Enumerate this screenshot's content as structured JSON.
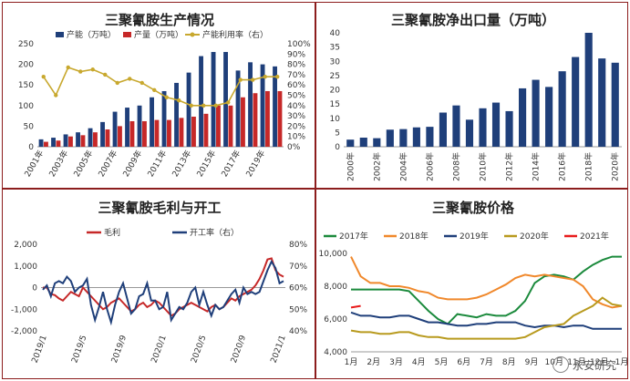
{
  "colors": {
    "blue": "#1f3f7a",
    "red": "#c62828",
    "gold": "#c8a82e",
    "green": "#1b8a3c",
    "orange": "#f0882b",
    "navy": "#1f3f7a",
    "darkgold": "#b89a1e",
    "brightred": "#e81b1b"
  },
  "watermark": "永安研究",
  "chart_data": [
    {
      "type": "bar",
      "title": "三聚氰胺生产情况",
      "categories": [
        "2001年",
        "2002年",
        "2003年",
        "2004年",
        "2005年",
        "2006年",
        "2007年",
        "2008年",
        "2009年",
        "2010年",
        "2011年",
        "2012年",
        "2013年",
        "2014年",
        "2015年",
        "2016年",
        "2017年",
        "2018年",
        "2019年",
        "2020年"
      ],
      "xticks": [
        "2001年",
        "2003年",
        "2005年",
        "2007年",
        "2009年",
        "2011年",
        "2013年",
        "2015年",
        "2017年",
        "2019年"
      ],
      "series": [
        {
          "name": "产能（万吨）",
          "axis": "left",
          "values": [
            18,
            22,
            30,
            35,
            45,
            60,
            85,
            95,
            100,
            120,
            135,
            155,
            180,
            220,
            230,
            230,
            185,
            205,
            200,
            195
          ]
        },
        {
          "name": "产量（万吨）",
          "axis": "left",
          "values": [
            12,
            15,
            25,
            28,
            35,
            42,
            50,
            62,
            62,
            65,
            65,
            70,
            73,
            80,
            100,
            100,
            120,
            130,
            135,
            135
          ]
        },
        {
          "name": "产能利用率（右）",
          "type": "line",
          "axis": "right",
          "values": [
            68,
            50,
            77,
            73,
            75,
            70,
            62,
            66,
            62,
            55,
            48,
            45,
            40,
            40,
            40,
            43,
            65,
            65,
            68,
            68
          ]
        }
      ],
      "ylim": [
        0,
        250
      ],
      "yticks": [
        0,
        50,
        100,
        150,
        200,
        250
      ],
      "y2lim": [
        0,
        100
      ],
      "y2ticks": [
        "0%",
        "10%",
        "20%",
        "30%",
        "40%",
        "50%",
        "60%",
        "70%",
        "80%",
        "90%",
        "100%"
      ]
    },
    {
      "type": "bar",
      "title": "三聚氰胺净出口量（万吨）",
      "categories": [
        "2000年",
        "2001年",
        "2002年",
        "2003年",
        "2004年",
        "2005年",
        "2006年",
        "2007年",
        "2008年",
        "2009年",
        "2010年",
        "2011年",
        "2012年",
        "2013年",
        "2014年",
        "2015年",
        "2016年",
        "2017年",
        "2018年",
        "2019年",
        "2020年"
      ],
      "xticks": [
        "2000年",
        "2002年",
        "2004年",
        "2006年",
        "2008年",
        "2010年",
        "2012年",
        "2014年",
        "2016年",
        "2018年",
        "2020年"
      ],
      "values": [
        2.5,
        3.2,
        3,
        6,
        6.2,
        6.8,
        7,
        12,
        14.5,
        9.5,
        13.5,
        15.5,
        12.5,
        20.5,
        23.5,
        21,
        26.5,
        31.5,
        40,
        31,
        29.5
      ],
      "ylim": [
        0,
        40
      ],
      "yticks": [
        0,
        5,
        10,
        15,
        20,
        25,
        30,
        35,
        40
      ]
    },
    {
      "type": "line",
      "title": "三聚氰胺毛利与开工",
      "xticks": [
        "2019/1",
        "2019/5",
        "2019/9",
        "2020/1",
        "2020/5",
        "2020/9",
        "2021/1"
      ],
      "series": [
        {
          "name": "毛利",
          "axis": "left",
          "values": [
            0,
            0,
            -300,
            -350,
            -500,
            -600,
            -400,
            -200,
            -300,
            -400,
            0,
            -200,
            -400,
            -600,
            -800,
            -1000,
            -900,
            -700,
            -600,
            -500,
            -700,
            -900,
            -1100,
            -1000,
            -800,
            -700,
            -900,
            -800,
            -600,
            -700,
            -900,
            -1100,
            -1300,
            -1200,
            -1000,
            -900,
            -800,
            -700,
            -800,
            -900,
            -1000,
            -1100,
            -900,
            -800,
            -1000,
            -900,
            -700,
            -500,
            -600,
            -400,
            -300,
            -200,
            -100,
            100,
            400,
            800,
            1300,
            1350,
            800,
            600,
            500
          ]
        },
        {
          "name": "开工率（右）",
          "axis": "right",
          "values": [
            59,
            61,
            56,
            62,
            63,
            62,
            65,
            63,
            58,
            60,
            61,
            64,
            52,
            45,
            51,
            58,
            50,
            44,
            52,
            58,
            62,
            55,
            48,
            50,
            56,
            57,
            62,
            54,
            54,
            50,
            51,
            58,
            45,
            48,
            51,
            50,
            53,
            58,
            60,
            52,
            58,
            52,
            47,
            52,
            50,
            51,
            54,
            57,
            59,
            53,
            60,
            57,
            58,
            57,
            58,
            63,
            68,
            72,
            69,
            62,
            63
          ]
        }
      ],
      "ylim": [
        -2000,
        2000
      ],
      "yticks": [
        "-2,000",
        "-1,000",
        "0",
        "1,000",
        "2,000"
      ],
      "y2lim": [
        40,
        80
      ],
      "y2ticks": [
        "40%",
        "50%",
        "60%",
        "70%",
        "80%"
      ]
    },
    {
      "type": "line",
      "title": "三聚氰胺价格",
      "xticks": [
        "1月",
        "2月",
        "3月",
        "4月",
        "5月",
        "6月",
        "7月",
        "8月",
        "9月",
        "10月",
        "11月",
        "12月",
        "1月"
      ],
      "series": [
        {
          "name": "2017年",
          "values": [
            7800,
            7800,
            7800,
            7800,
            7800,
            7800,
            7700,
            7100,
            6500,
            6000,
            5700,
            6300,
            6200,
            6100,
            6300,
            6200,
            6200,
            6500,
            7100,
            8200,
            8600,
            8700,
            8600,
            8400,
            8900,
            9300,
            9600,
            9800,
            9800
          ]
        },
        {
          "name": "2018年",
          "values": [
            9800,
            8600,
            8200,
            8200,
            8000,
            8000,
            7900,
            7700,
            7600,
            7300,
            7200,
            7200,
            7200,
            7300,
            7500,
            7800,
            8100,
            8500,
            8700,
            8600,
            8700,
            8600,
            8500,
            8400,
            8000,
            7200,
            6900,
            6700,
            6800
          ]
        },
        {
          "name": "2019年",
          "values": [
            6400,
            6200,
            6200,
            6100,
            6100,
            6200,
            6200,
            6000,
            5800,
            5800,
            5700,
            5600,
            5600,
            5700,
            5700,
            5800,
            5800,
            5800,
            5600,
            5500,
            5600,
            5600,
            5500,
            5600,
            5600,
            5400,
            5400,
            5400,
            5400
          ]
        },
        {
          "name": "2020年",
          "values": [
            5300,
            5200,
            5200,
            5100,
            5100,
            5200,
            5200,
            5000,
            4900,
            4900,
            4800,
            4800,
            4800,
            4800,
            4800,
            4800,
            4800,
            4800,
            4900,
            5200,
            5500,
            5600,
            5700,
            6200,
            6500,
            6800,
            7300,
            6900,
            6800
          ]
        },
        {
          "name": "2021年",
          "values": [
            6700,
            6800
          ]
        }
      ],
      "ylim": [
        4000,
        10000
      ],
      "yticks": [
        "4,000",
        "6,000",
        "8,000",
        "10,000"
      ]
    }
  ]
}
